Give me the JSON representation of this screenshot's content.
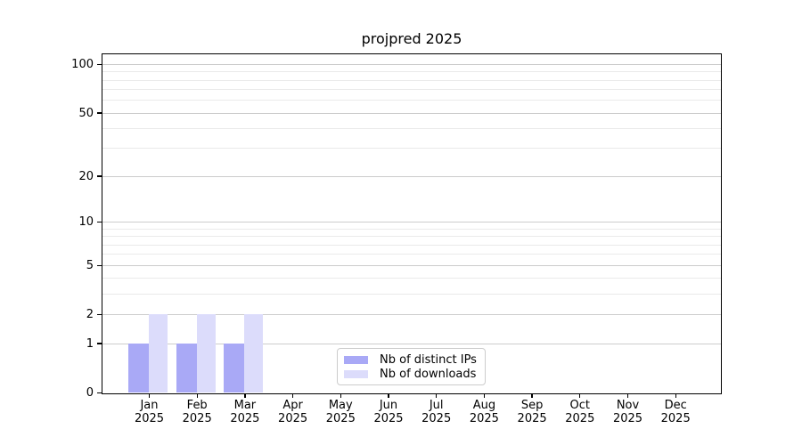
{
  "title": "projpred 2025",
  "chart_data": {
    "type": "bar",
    "title": "projpred 2025",
    "categories": [
      "Jan",
      "Feb",
      "Mar",
      "Apr",
      "May",
      "Jun",
      "Jul",
      "Aug",
      "Sep",
      "Oct",
      "Nov",
      "Dec"
    ],
    "x_tick_year": "2025",
    "series": [
      {
        "name": "Nb of distinct IPs",
        "color": "#a9a9f6",
        "values": [
          1,
          1,
          1,
          0,
          0,
          0,
          0,
          0,
          0,
          0,
          0,
          0
        ]
      },
      {
        "name": "Nb of downloads",
        "color": "#dcdcfb",
        "values": [
          2,
          2,
          2,
          0,
          0,
          0,
          0,
          0,
          0,
          0,
          0,
          0
        ]
      }
    ],
    "xlabel": "",
    "ylabel": "",
    "ylim": [
      0,
      100
    ],
    "y_scale": "log1p",
    "y_major_ticks": [
      0,
      1,
      2,
      5,
      10,
      20,
      50,
      100
    ],
    "y_minor_gridlines": [
      3,
      4,
      6,
      7,
      8,
      9,
      30,
      40,
      60,
      70,
      80,
      90
    ],
    "grid": "horizontal-only",
    "legend_position": "lower center"
  },
  "colors": {
    "background": "#ffffff",
    "axis_frame": "#000000",
    "grid_major": "#cccccc",
    "grid_minor": "#eaeaea",
    "legend_border": "#cccccc",
    "text": "#000000"
  }
}
